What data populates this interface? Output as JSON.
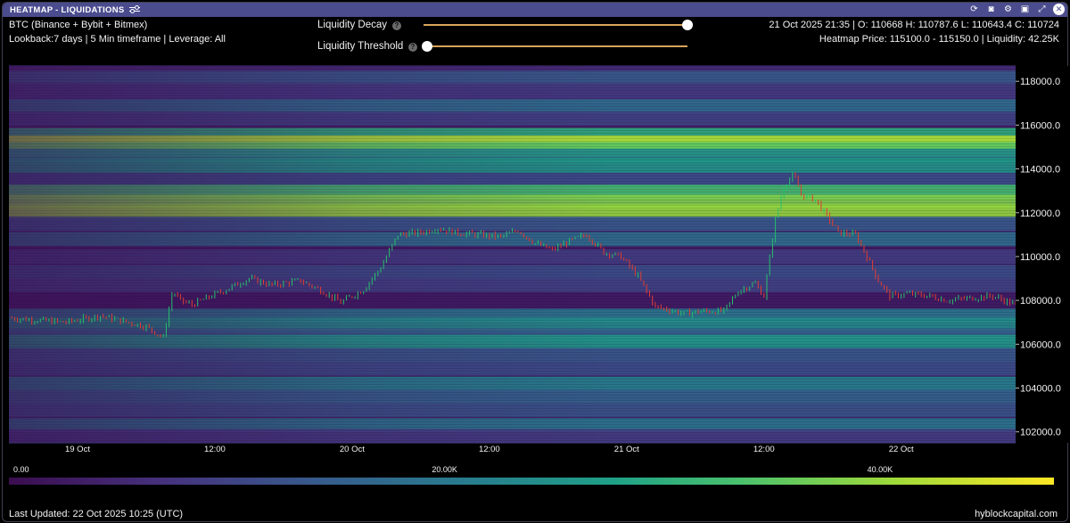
{
  "window": {
    "title": "HEATMAP - LIQUIDATIONS"
  },
  "header": {
    "source": "BTC (Binance + Bybit + Bitmex)",
    "settings": "Lookback:7 days | 5 Min timeframe | Leverage: All",
    "ohlc": "21 Oct 2025 21:35 | O: 110668 H: 110787.6 L: 110643.4 C: 110724",
    "heatmap_price": "Heatmap Price: 115100.0 - 115150.0 | Liquidity: 42.25K"
  },
  "controls": {
    "decay_label": "Liquidity Decay",
    "decay_value": 1.0,
    "threshold_label": "Liquidity Threshold",
    "threshold_value": 0.0,
    "help_glyph": "?"
  },
  "icons": [
    "tune-icon",
    "refresh-icon",
    "camera-icon",
    "settings-icon",
    "save-icon",
    "expand-icon",
    "close-icon"
  ],
  "chart_data": {
    "type": "heatmap",
    "x_ticks": [
      "19 Oct",
      "12:00",
      "20 Oct",
      "12:00",
      "21 Oct",
      "12:00",
      "22 Oct"
    ],
    "x_tick_hours": [
      6,
      18,
      30,
      42,
      54,
      66,
      78
    ],
    "x_range_hours": [
      0,
      88
    ],
    "y_ticks": [
      "118000.0",
      "116000.0",
      "114000.0",
      "112000.0",
      "110000.0",
      "108000.0",
      "106000.0",
      "104000.0",
      "102000.0"
    ],
    "ylim": [
      101500,
      118700
    ],
    "price_series": {
      "t_hours": [
        0,
        5,
        8,
        12,
        13.5,
        14.3,
        15,
        16,
        19,
        21,
        23,
        25.5,
        27.5,
        29,
        31,
        32.5,
        34,
        36,
        37.5,
        39,
        41,
        43,
        44.5,
        46,
        47.5,
        49,
        50.5,
        52,
        53.5,
        55,
        56.5,
        57.5,
        59,
        60.5,
        62.5,
        63.7,
        65.2,
        66,
        67,
        67.8,
        68.6,
        69.3,
        70.5,
        72.5,
        74,
        75,
        76,
        77,
        78.5,
        80.5,
        82,
        84,
        86,
        88
      ],
      "close": [
        107200,
        107000,
        107300,
        106800,
        106300,
        108400,
        108000,
        107800,
        108500,
        109000,
        108700,
        108900,
        108400,
        107900,
        108500,
        109500,
        111000,
        111100,
        111300,
        111100,
        111000,
        110900,
        111200,
        110600,
        110300,
        110700,
        111000,
        110200,
        110000,
        109100,
        107700,
        107600,
        107400,
        107500,
        107500,
        108400,
        108800,
        108200,
        111700,
        113300,
        113700,
        112800,
        112600,
        111100,
        111000,
        110000,
        108900,
        108200,
        108300,
        108200,
        108000,
        108100,
        108200,
        107800
      ],
      "up_color": "#27c06a",
      "down_color": "#e03c31"
    },
    "liquidity_bands": [
      {
        "y": 118400,
        "value": 6.0
      },
      {
        "y": 118150,
        "value": 14.0
      },
      {
        "y": 117600,
        "value": 9.0
      },
      {
        "y": 117300,
        "value": 8.0
      },
      {
        "y": 116850,
        "value": 18.0
      },
      {
        "y": 116300,
        "value": 10.0
      },
      {
        "y": 115550,
        "value": 30.0
      },
      {
        "y": 115200,
        "value": 42.25
      },
      {
        "y": 114900,
        "value": 35.0
      },
      {
        "y": 114600,
        "value": 24.0
      },
      {
        "y": 114150,
        "value": 26.0
      },
      {
        "y": 113500,
        "value": 12.0
      },
      {
        "y": 112950,
        "value": 33.0
      },
      {
        "y": 112500,
        "value": 38.0
      },
      {
        "y": 112050,
        "value": 40.0
      },
      {
        "y": 111500,
        "value": 14.0
      },
      {
        "y": 110800,
        "value": 18.0
      },
      {
        "y": 110000,
        "value": 9.0
      },
      {
        "y": 109300,
        "value": 12.0
      },
      {
        "y": 108700,
        "value": 10.0
      },
      {
        "y": 107300,
        "value": 20.0
      },
      {
        "y": 106900,
        "value": 24.0
      },
      {
        "y": 106400,
        "value": 16.0
      },
      {
        "y": 106100,
        "value": 26.0
      },
      {
        "y": 105500,
        "value": 14.0
      },
      {
        "y": 104900,
        "value": 12.0
      },
      {
        "y": 104200,
        "value": 22.0
      },
      {
        "y": 103600,
        "value": 16.0
      },
      {
        "y": 103000,
        "value": 13.0
      },
      {
        "y": 102300,
        "value": 20.0
      },
      {
        "y": 101800,
        "value": 9.0
      }
    ],
    "colorbar": {
      "ticks": [
        "0.00",
        "20.00K",
        "40.00K"
      ],
      "tick_values": [
        0,
        20000,
        40000
      ],
      "max": 48000
    }
  },
  "footer": {
    "last_updated": "Last Updated: 22 Oct 2025 10:25 (UTC)",
    "brand": "hyblockcapital.com"
  }
}
